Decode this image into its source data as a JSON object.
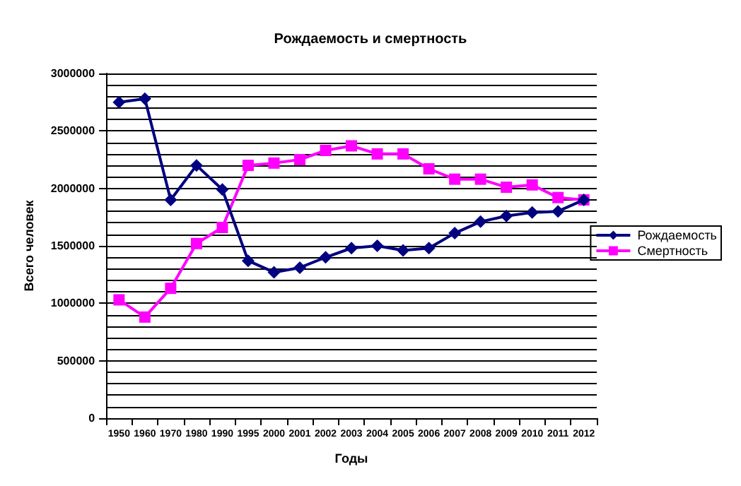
{
  "chart_data": {
    "type": "line",
    "title": "Рождаемость и смертность",
    "xlabel": "Годы",
    "ylabel": "Всего человек",
    "categories": [
      "1950",
      "1960",
      "1970",
      "1980",
      "1990",
      "1995",
      "2000",
      "2001",
      "2002",
      "2003",
      "2004",
      "2005",
      "2006",
      "2007",
      "2008",
      "2009",
      "2010",
      "2011",
      "2012"
    ],
    "series": [
      {
        "name": "Рождаемость",
        "color": "#000080",
        "marker": "diamond",
        "values": [
          2750000,
          2780000,
          1900000,
          2200000,
          1990000,
          1370000,
          1270000,
          1310000,
          1400000,
          1480000,
          1500000,
          1460000,
          1480000,
          1610000,
          1710000,
          1760000,
          1790000,
          1800000,
          1900000
        ]
      },
      {
        "name": "Смертность",
        "color": "#ff00ff",
        "marker": "square",
        "values": [
          1030000,
          880000,
          1130000,
          1520000,
          1660000,
          2200000,
          2220000,
          2250000,
          2330000,
          2370000,
          2300000,
          2300000,
          2170000,
          2080000,
          2080000,
          2010000,
          2030000,
          1920000,
          1900000
        ]
      }
    ],
    "ylim": [
      0,
      3000000
    ],
    "yticks": [
      0,
      500000,
      1000000,
      1500000,
      2000000,
      2500000,
      3000000
    ],
    "grid": "y",
    "legend": "right"
  }
}
